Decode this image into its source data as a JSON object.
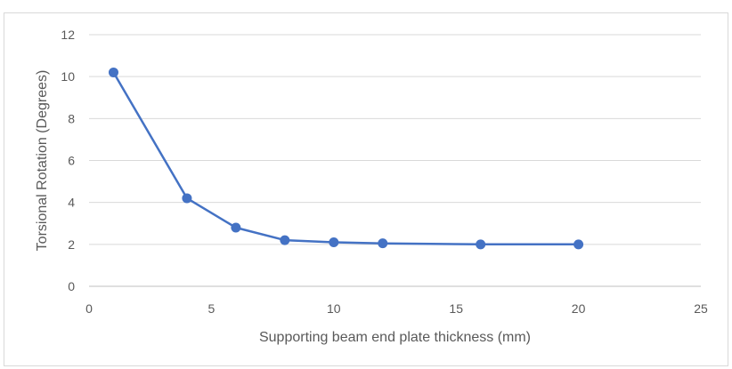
{
  "chart_data": {
    "type": "scatter",
    "mode": "lines+markers",
    "title": "",
    "xlabel": "Supporting beam end plate thickness (mm)",
    "ylabel": "Torsional Rotation (Degrees)",
    "xlim": [
      0,
      25
    ],
    "ylim": [
      0,
      12
    ],
    "xticks": [
      0,
      5,
      10,
      15,
      20,
      25
    ],
    "yticks": [
      0,
      2,
      4,
      6,
      8,
      10,
      12
    ],
    "grid": {
      "horizontal": true,
      "vertical": false
    },
    "legend": "none",
    "series": [
      {
        "color": "#4472C4",
        "x": [
          1,
          4,
          6,
          8,
          10,
          12,
          16,
          20
        ],
        "y": [
          10.2,
          4.2,
          2.8,
          2.2,
          2.1,
          2.05,
          2.0,
          2.0
        ]
      }
    ]
  }
}
